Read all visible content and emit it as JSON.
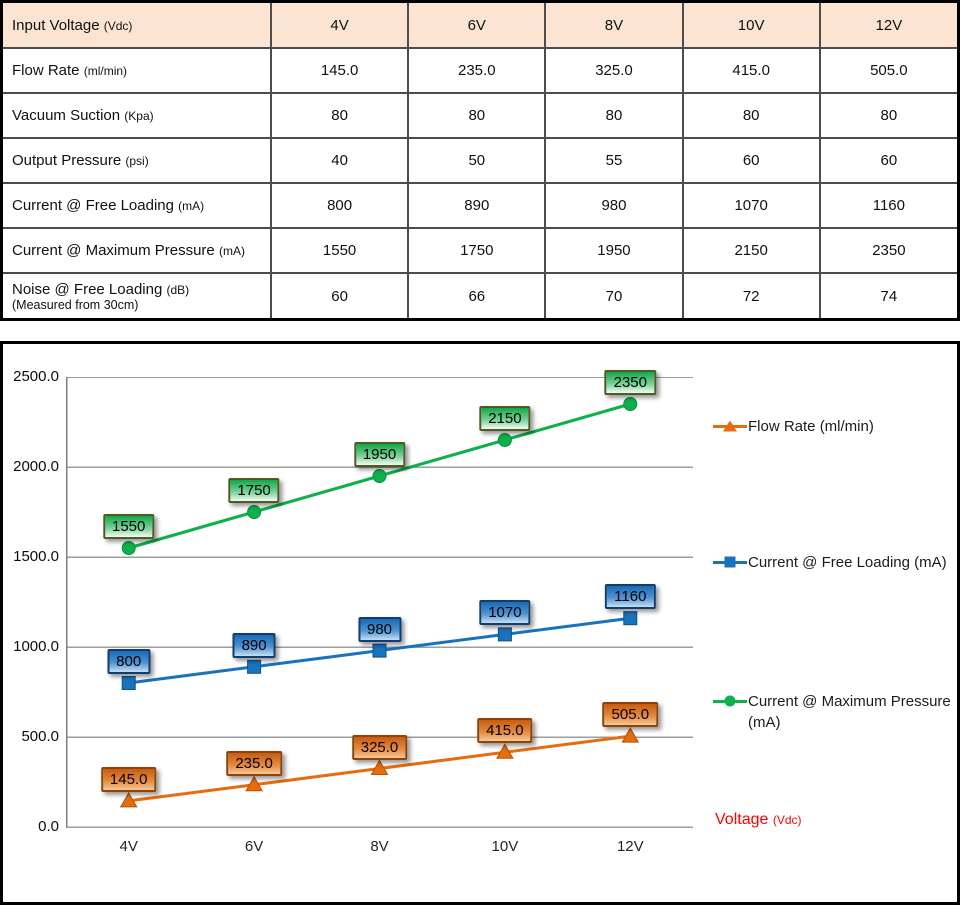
{
  "colors": {
    "table_header_bg": "#fbe5d2",
    "xaxis_title_color": "#ff0000"
  },
  "table": {
    "header": {
      "label": "Input Voltage",
      "unit": "(Vdc)",
      "values": [
        "4V",
        "6V",
        "8V",
        "10V",
        "12V"
      ]
    },
    "rows": [
      {
        "label": "Flow Rate",
        "unit": "(ml/min)",
        "values": [
          "145.0",
          "235.0",
          "325.0",
          "415.0",
          "505.0"
        ]
      },
      {
        "label": "Vacuum Suction",
        "unit": "(Kpa)",
        "values": [
          "80",
          "80",
          "80",
          "80",
          "80"
        ]
      },
      {
        "label": "Output Pressure",
        "unit": "(psi)",
        "values": [
          "40",
          "50",
          "55",
          "60",
          "60"
        ]
      },
      {
        "label": "Current @ Free Loading",
        "unit": "(mA)",
        "values": [
          "800",
          "890",
          "980",
          "1070",
          "1160"
        ]
      },
      {
        "label": "Current @ Maximum Pressure",
        "unit": "(mA)",
        "values": [
          "1550",
          "1750",
          "1950",
          "2150",
          "2350"
        ]
      },
      {
        "label": "Noise @ Free Loading",
        "unit": "(dB)",
        "note": "(Measured from 30cm)",
        "values": [
          "60",
          "66",
          "70",
          "72",
          "74"
        ]
      }
    ]
  },
  "chart_data": {
    "type": "line",
    "title": "",
    "categories": [
      "4V",
      "6V",
      "8V",
      "10V",
      "12V"
    ],
    "series": [
      {
        "name": "Flow Rate (ml/min)",
        "values": [
          145.0,
          235.0,
          325.0,
          415.0,
          505.0
        ],
        "labels": [
          "145.0",
          "235.0",
          "325.0",
          "415.0",
          "505.0"
        ],
        "marker": "triangle",
        "color": "#e66c0e",
        "edge": "#b35408"
      },
      {
        "name": "Current @ Free Loading (mA)",
        "values": [
          800,
          890,
          980,
          1070,
          1160
        ],
        "labels": [
          "800",
          "890",
          "980",
          "1070",
          "1160"
        ],
        "marker": "square",
        "color": "#1873bd",
        "edge": "#10518a"
      },
      {
        "name": "Current @ Maximum Pressure (mA)",
        "values": [
          1550,
          1750,
          1950,
          2150,
          2350
        ],
        "labels": [
          "1550",
          "1750",
          "1950",
          "2150",
          "2350"
        ],
        "marker": "circle",
        "color": "#0cb14b",
        "edge": "#0a8f3e"
      }
    ],
    "xlabel": "Voltage",
    "xlabel_unit": "(Vdc)",
    "ylabel": "",
    "ylim": [
      0,
      2500
    ],
    "ytick_labels": [
      "0.0",
      "500.0",
      "1000.0",
      "1500.0",
      "2000.0",
      "2500.0"
    ],
    "grid": true,
    "legend_position": "right"
  }
}
